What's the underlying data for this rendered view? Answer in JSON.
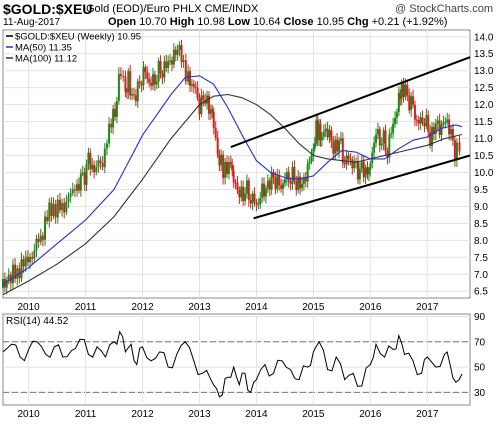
{
  "header": {
    "symbol": "$GOLD:$XEU",
    "description": "Gold (EOD)/Euro PHLX  CME/INDX",
    "source": "@ StockCharts.com",
    "date": "11-Aug-2017",
    "open_label": "Open",
    "open": "10.70",
    "high_label": "High",
    "high": "10.98",
    "low_label": "Low",
    "low": "10.64",
    "close_label": "Close",
    "close": "10.95",
    "chg_label": "Chg",
    "chg": "+0.21 (+1.92%)"
  },
  "chart_data": [
    {
      "type": "line",
      "legend": [
        {
          "label": "$GOLD:$XEU (Weekly) 10.95",
          "color": "#000000"
        },
        {
          "label": "MA(50) 11.35",
          "color": "#2b2bd6"
        },
        {
          "label": "MA(100) 11.12",
          "color": "#333333"
        }
      ],
      "legend_position": "top-left",
      "x_ticks": [
        "2010",
        "2011",
        "2012",
        "2013",
        "2014",
        "2015",
        "2016",
        "2017"
      ],
      "y_ticks": [
        "6.5",
        "7.0",
        "7.5",
        "8.0",
        "8.5",
        "9.0",
        "9.5",
        "10.0",
        "10.5",
        "11.0",
        "11.5",
        "12.0",
        "12.5",
        "13.0",
        "13.5",
        "14.0"
      ],
      "ylim": [
        6.3,
        14.2
      ],
      "grid": true,
      "candles": {
        "up_color": "#1a8a1a",
        "down_color": "#d42020"
      },
      "series": [
        {
          "name": "$GOLD:$XEU",
          "color": "#000000",
          "x": [
            2009.55,
            2009.65,
            2009.8,
            2009.95,
            2010.1,
            2010.25,
            2010.4,
            2010.55,
            2010.7,
            2010.85,
            2010.95,
            2011.05,
            2011.15,
            2011.3,
            2011.45,
            2011.55,
            2011.62,
            2011.7,
            2011.75,
            2011.85,
            2011.95,
            2012.05,
            2012.15,
            2012.25,
            2012.35,
            2012.45,
            2012.55,
            2012.65,
            2012.72,
            2012.8,
            2012.9,
            2013.0,
            2013.1,
            2013.2,
            2013.25,
            2013.32,
            2013.38,
            2013.45,
            2013.55,
            2013.6,
            2013.7,
            2013.8,
            2013.9,
            2014.0,
            2014.1,
            2014.2,
            2014.3,
            2014.4,
            2014.5,
            2014.6,
            2014.7,
            2014.8,
            2014.9,
            2015.0,
            2015.05,
            2015.1,
            2015.15,
            2015.25,
            2015.35,
            2015.45,
            2015.55,
            2015.65,
            2015.75,
            2015.85,
            2015.95,
            2016.0,
            2016.1,
            2016.2,
            2016.3,
            2016.4,
            2016.5,
            2016.55,
            2016.65,
            2016.75,
            2016.85,
            2016.95,
            2017.05,
            2017.15,
            2017.25,
            2017.35,
            2017.45,
            2017.52,
            2017.61
          ],
          "y": [
            6.6,
            6.8,
            7.1,
            7.4,
            7.7,
            8.3,
            9.0,
            8.9,
            9.2,
            9.6,
            9.8,
            10.3,
            10.0,
            10.4,
            11.5,
            12.2,
            13.0,
            12.4,
            12.7,
            12.0,
            12.6,
            13.0,
            12.6,
            12.9,
            13.1,
            13.3,
            13.4,
            13.6,
            13.2,
            12.8,
            12.5,
            12.0,
            12.3,
            11.9,
            11.3,
            10.5,
            10.3,
            10.0,
            10.2,
            9.9,
            9.4,
            9.5,
            9.3,
            9.1,
            9.4,
            9.5,
            9.8,
            9.6,
            9.8,
            9.9,
            9.8,
            9.7,
            10.1,
            10.6,
            11.4,
            11.2,
            11.0,
            11.3,
            10.8,
            11.0,
            10.3,
            10.4,
            10.1,
            10.0,
            9.9,
            10.4,
            11.2,
            11.0,
            10.7,
            11.5,
            12.1,
            12.4,
            12.2,
            11.9,
            11.4,
            11.6,
            11.1,
            11.5,
            11.3,
            11.5,
            10.8,
            10.6,
            10.95
          ]
        },
        {
          "name": "MA(50)",
          "color": "#2b2bd6",
          "x": [
            2009.55,
            2010.0,
            2010.5,
            2011.0,
            2011.5,
            2012.0,
            2012.5,
            2012.75,
            2013.0,
            2013.25,
            2013.5,
            2013.75,
            2014.0,
            2014.25,
            2014.5,
            2014.75,
            2015.0,
            2015.25,
            2015.5,
            2015.75,
            2016.0,
            2016.25,
            2016.5,
            2016.75,
            2017.0,
            2017.25,
            2017.5,
            2017.61
          ],
          "y": [
            6.7,
            7.2,
            7.9,
            8.6,
            9.5,
            11.1,
            12.3,
            12.8,
            12.85,
            12.6,
            11.9,
            11.1,
            10.35,
            10.0,
            9.85,
            9.8,
            9.9,
            10.3,
            10.65,
            10.6,
            10.4,
            10.4,
            10.7,
            10.95,
            11.05,
            11.3,
            11.4,
            11.35
          ]
        },
        {
          "name": "MA(100)",
          "color": "#333333",
          "x": [
            2009.55,
            2010.0,
            2010.5,
            2011.0,
            2011.5,
            2012.0,
            2012.5,
            2013.0,
            2013.25,
            2013.5,
            2013.75,
            2014.0,
            2014.25,
            2014.5,
            2014.75,
            2015.0,
            2015.25,
            2015.5,
            2015.75,
            2016.0,
            2016.5,
            2017.0,
            2017.3,
            2017.61
          ],
          "y": [
            6.4,
            6.8,
            7.3,
            7.9,
            8.7,
            9.8,
            11.0,
            12.0,
            12.25,
            12.3,
            12.2,
            12.0,
            11.7,
            11.3,
            10.85,
            10.5,
            10.4,
            10.35,
            10.3,
            10.4,
            10.6,
            10.8,
            11.0,
            11.12
          ]
        }
      ],
      "trendlines": [
        {
          "x1": 2013.55,
          "y1": 10.75,
          "x2": 2017.75,
          "y2": 13.4
        },
        {
          "x1": 2013.95,
          "y1": 8.65,
          "x2": 2017.75,
          "y2": 10.5
        }
      ],
      "xlim": [
        2009.55,
        2017.75
      ]
    },
    {
      "type": "line",
      "title": "RSI(14) 44.52",
      "x_ticks": [
        "2010",
        "2011",
        "2012",
        "2013",
        "2014",
        "2015",
        "2016",
        "2017"
      ],
      "y_ticks": [
        "30",
        "50",
        "70",
        "90"
      ],
      "ylim": [
        20,
        92
      ],
      "reference_lines": [
        30,
        70
      ],
      "series": [
        {
          "name": "RSI(14)",
          "color": "#000000",
          "x": [
            2009.55,
            2009.7,
            2009.85,
            2010.0,
            2010.15,
            2010.3,
            2010.45,
            2010.6,
            2010.75,
            2010.9,
            2011.05,
            2011.2,
            2011.35,
            2011.5,
            2011.6,
            2011.7,
            2011.8,
            2011.9,
            2012.0,
            2012.15,
            2012.3,
            2012.45,
            2012.6,
            2012.75,
            2012.9,
            2013.05,
            2013.2,
            2013.3,
            2013.4,
            2013.5,
            2013.6,
            2013.7,
            2013.8,
            2013.9,
            2014.0,
            2014.15,
            2014.3,
            2014.45,
            2014.6,
            2014.75,
            2014.9,
            2015.0,
            2015.1,
            2015.25,
            2015.4,
            2015.55,
            2015.7,
            2015.85,
            2016.0,
            2016.1,
            2016.25,
            2016.4,
            2016.5,
            2016.6,
            2016.75,
            2016.9,
            2017.0,
            2017.15,
            2017.3,
            2017.4,
            2017.5,
            2017.61
          ],
          "y": [
            62,
            68,
            58,
            64,
            70,
            60,
            66,
            58,
            63,
            72,
            60,
            66,
            58,
            70,
            78,
            62,
            68,
            52,
            66,
            55,
            62,
            50,
            60,
            70,
            55,
            45,
            40,
            33,
            28,
            42,
            50,
            36,
            45,
            30,
            40,
            52,
            45,
            55,
            48,
            40,
            50,
            62,
            70,
            48,
            58,
            40,
            45,
            35,
            52,
            68,
            58,
            64,
            75,
            60,
            55,
            45,
            58,
            50,
            60,
            52,
            38,
            44.52
          ]
        }
      ],
      "xlim": [
        2009.55,
        2017.75
      ]
    }
  ]
}
